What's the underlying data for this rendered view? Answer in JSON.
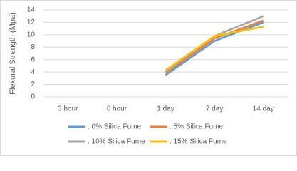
{
  "chart_data": {
    "type": "line",
    "y_label": "Flexural Strength  (Mpa)",
    "categories": [
      "3 hour",
      "6 hour",
      "1 day",
      "7 day",
      "14 day"
    ],
    "series": [
      {
        "name": ". 0% Silica Fume",
        "color": "#5b9bd5",
        "values": [
          null,
          null,
          3.5,
          9.0,
          12.0
        ]
      },
      {
        "name": ". 5% Silica Fume",
        "color": "#ed7d31",
        "values": [
          null,
          null,
          3.8,
          9.4,
          12.3
        ]
      },
      {
        "name": ". 10% Silica Fume",
        "color": "#a5a5a5",
        "values": [
          null,
          null,
          4.0,
          9.8,
          13.0
        ]
      },
      {
        "name": ". 15% Silica Fume",
        "color": "#ffc000",
        "values": [
          null,
          null,
          4.3,
          9.8,
          11.3
        ]
      }
    ],
    "ylim": [
      0,
      14
    ],
    "yticks": [
      0,
      2,
      4,
      6,
      8,
      10,
      12,
      14
    ],
    "grid": true
  }
}
